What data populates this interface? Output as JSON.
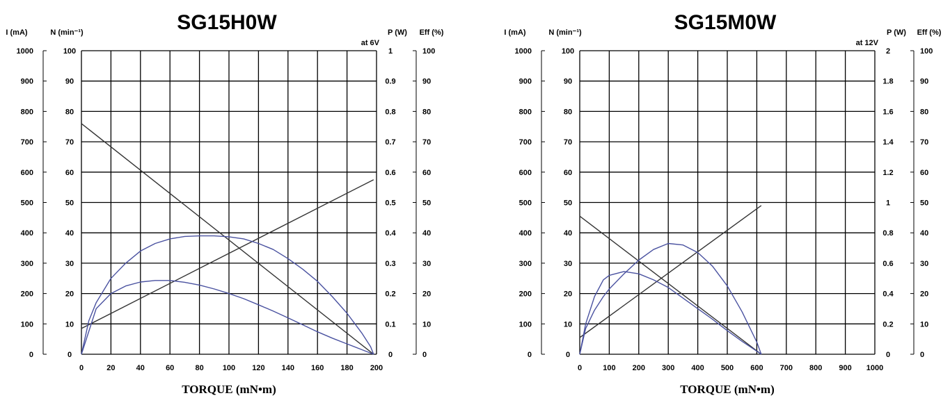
{
  "chart_data": [
    {
      "type": "line",
      "title": "SG15H0W",
      "annotation": "at 6V",
      "xlabel": "TORQUE (mN•m)",
      "x_ticks": [
        "0",
        "20",
        "40",
        "60",
        "80",
        "100",
        "120",
        "140",
        "160",
        "180",
        "200"
      ],
      "xlim": [
        0,
        200
      ],
      "axes": [
        {
          "label": "I (mA)",
          "ticks": [
            "1000",
            "900",
            "800",
            "700",
            "600",
            "500",
            "400",
            "300",
            "200",
            "100",
            "0"
          ],
          "range": [
            0,
            1000
          ]
        },
        {
          "label": "N (min⁻¹)",
          "ticks": [
            "100",
            "90",
            "80",
            "70",
            "60",
            "50",
            "40",
            "30",
            "20",
            "10",
            "0"
          ],
          "range": [
            0,
            100
          ]
        },
        {
          "label": "P (W)",
          "ticks": [
            "1",
            "0.9",
            "0.8",
            "0.7",
            "0.6",
            "0.5",
            "0.4",
            "0.3",
            "0.2",
            "0.1",
            "0"
          ],
          "range": [
            0,
            1
          ]
        },
        {
          "label": "Eff (%)",
          "ticks": [
            "100",
            "90",
            "80",
            "70",
            "60",
            "50",
            "40",
            "30",
            "20",
            "10",
            "0"
          ],
          "range": [
            0,
            100
          ]
        }
      ],
      "series": [
        {
          "axis": "N (min⁻¹)",
          "color": "#333333",
          "x": [
            0,
            198
          ],
          "y": [
            76,
            0
          ]
        },
        {
          "axis": "I (mA)",
          "color": "#333333",
          "x": [
            0,
            198
          ],
          "y": [
            85,
            575
          ]
        },
        {
          "axis": "Eff (%)",
          "color": "#4a52a0",
          "x": [
            0,
            5,
            10,
            20,
            30,
            40,
            50,
            60,
            70,
            80,
            90,
            100,
            110,
            120,
            130,
            140,
            150,
            160,
            170,
            180,
            190,
            196,
            198
          ],
          "y": [
            0,
            11,
            17,
            25,
            30,
            34,
            36.5,
            38,
            38.8,
            39,
            39,
            38.7,
            38,
            36.5,
            34.5,
            31.5,
            28,
            24,
            19,
            13.5,
            7,
            2.5,
            0
          ]
        },
        {
          "axis": "P (W)",
          "color": "#4a52a0",
          "x": [
            0,
            10,
            20,
            30,
            40,
            50,
            60,
            70,
            80,
            90,
            100,
            110,
            120,
            130,
            140,
            150,
            160,
            170,
            180,
            190,
            198
          ],
          "y": [
            0,
            0.15,
            0.2,
            0.225,
            0.238,
            0.243,
            0.243,
            0.237,
            0.228,
            0.215,
            0.2,
            0.183,
            0.163,
            0.142,
            0.12,
            0.097,
            0.074,
            0.053,
            0.034,
            0.015,
            0
          ]
        }
      ]
    },
    {
      "type": "line",
      "title": "SG15M0W",
      "annotation": "at 12V",
      "xlabel": "TORQUE (mN•m)",
      "x_ticks": [
        "0",
        "100",
        "200",
        "300",
        "400",
        "500",
        "600",
        "700",
        "800",
        "900",
        "1000"
      ],
      "xlim": [
        0,
        1000
      ],
      "axes": [
        {
          "label": "I (mA)",
          "ticks": [
            "1000",
            "900",
            "800",
            "700",
            "600",
            "500",
            "400",
            "300",
            "200",
            "100",
            "0"
          ],
          "range": [
            0,
            1000
          ]
        },
        {
          "label": "N (min⁻¹)",
          "ticks": [
            "100",
            "90",
            "80",
            "70",
            "60",
            "50",
            "40",
            "30",
            "20",
            "10",
            "0"
          ],
          "range": [
            0,
            100
          ]
        },
        {
          "label": "P (W)",
          "ticks": [
            "2",
            "1.8",
            "1.6",
            "1.4",
            "1.2",
            "1",
            "0.8",
            "0.6",
            "0.4",
            "0.2",
            "0"
          ],
          "range": [
            0,
            2
          ]
        },
        {
          "label": "Eff (%)",
          "ticks": [
            "100",
            "90",
            "80",
            "70",
            "60",
            "50",
            "40",
            "30",
            "20",
            "10",
            "0"
          ],
          "range": [
            0,
            100
          ]
        }
      ],
      "series": [
        {
          "axis": "N (min⁻¹)",
          "color": "#333333",
          "x": [
            0,
            615
          ],
          "y": [
            45.5,
            0
          ]
        },
        {
          "axis": "I (mA)",
          "color": "#333333",
          "x": [
            0,
            615
          ],
          "y": [
            55,
            490
          ]
        },
        {
          "axis": "Eff (%)",
          "color": "#4a52a0",
          "x": [
            0,
            20,
            50,
            80,
            100,
            150,
            200,
            250,
            300,
            350,
            400,
            450,
            500,
            550,
            600,
            615
          ],
          "y": [
            0,
            8.5,
            14.5,
            19,
            21.5,
            26.5,
            31,
            34.5,
            36.5,
            36,
            33.5,
            29,
            22.5,
            14,
            4,
            0
          ]
        },
        {
          "axis": "P (W)",
          "color": "#4a52a0",
          "x": [
            0,
            20,
            50,
            80,
            100,
            150,
            200,
            250,
            300,
            350,
            400,
            450,
            500,
            550,
            600,
            615
          ],
          "y": [
            0,
            0.2,
            0.38,
            0.49,
            0.52,
            0.545,
            0.53,
            0.49,
            0.44,
            0.37,
            0.3,
            0.23,
            0.155,
            0.085,
            0.02,
            0
          ]
        }
      ]
    }
  ]
}
